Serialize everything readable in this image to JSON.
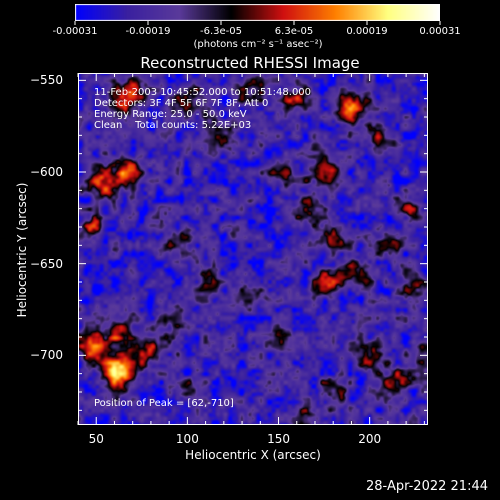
{
  "colorbar": {
    "tick_labels": [
      "-0.00031",
      "-0.00019",
      "-6.3e-05",
      "6.3e-05",
      "0.00019",
      "0.00031"
    ],
    "unit_label": "(photons cm⁻² s⁻¹ asec⁻²)"
  },
  "chart_data": {
    "type": "heatmap",
    "title": "Reconstructed RHESSI Image",
    "xlabel": "Heliocentric X (arcsec)",
    "ylabel": "Heliocentric Y (arcsec)",
    "xlim": [
      40,
      232
    ],
    "ylim": [
      -738,
      -546
    ],
    "xticks": [
      "50",
      "100",
      "150",
      "200"
    ],
    "yticks": [
      "-550",
      "-600",
      "-650",
      "-700"
    ],
    "zlim": [
      -0.00031,
      0.00031
    ],
    "peak": [
      62,
      -710
    ],
    "colormap": [
      "#0000ff",
      "#3a20a0",
      "#5a3a9a",
      "#000000",
      "#d01010",
      "#ff8000",
      "#ffff80",
      "#ffffff"
    ],
    "annotations": {
      "time": "11-Feb-2003 10:45:52.000 to 10:51:48.000",
      "detectors": "Detectors: 3F 4F 5F 6F 7F 8F, Att 0",
      "energy": "Energy Range: 25.0 - 50.0 keV",
      "method": "Clean    Total counts: 5.22E+03",
      "peak": "Position of Peak = [62,-710]"
    }
  },
  "footer": {
    "datestamp": "28-Apr-2022 21:44"
  }
}
